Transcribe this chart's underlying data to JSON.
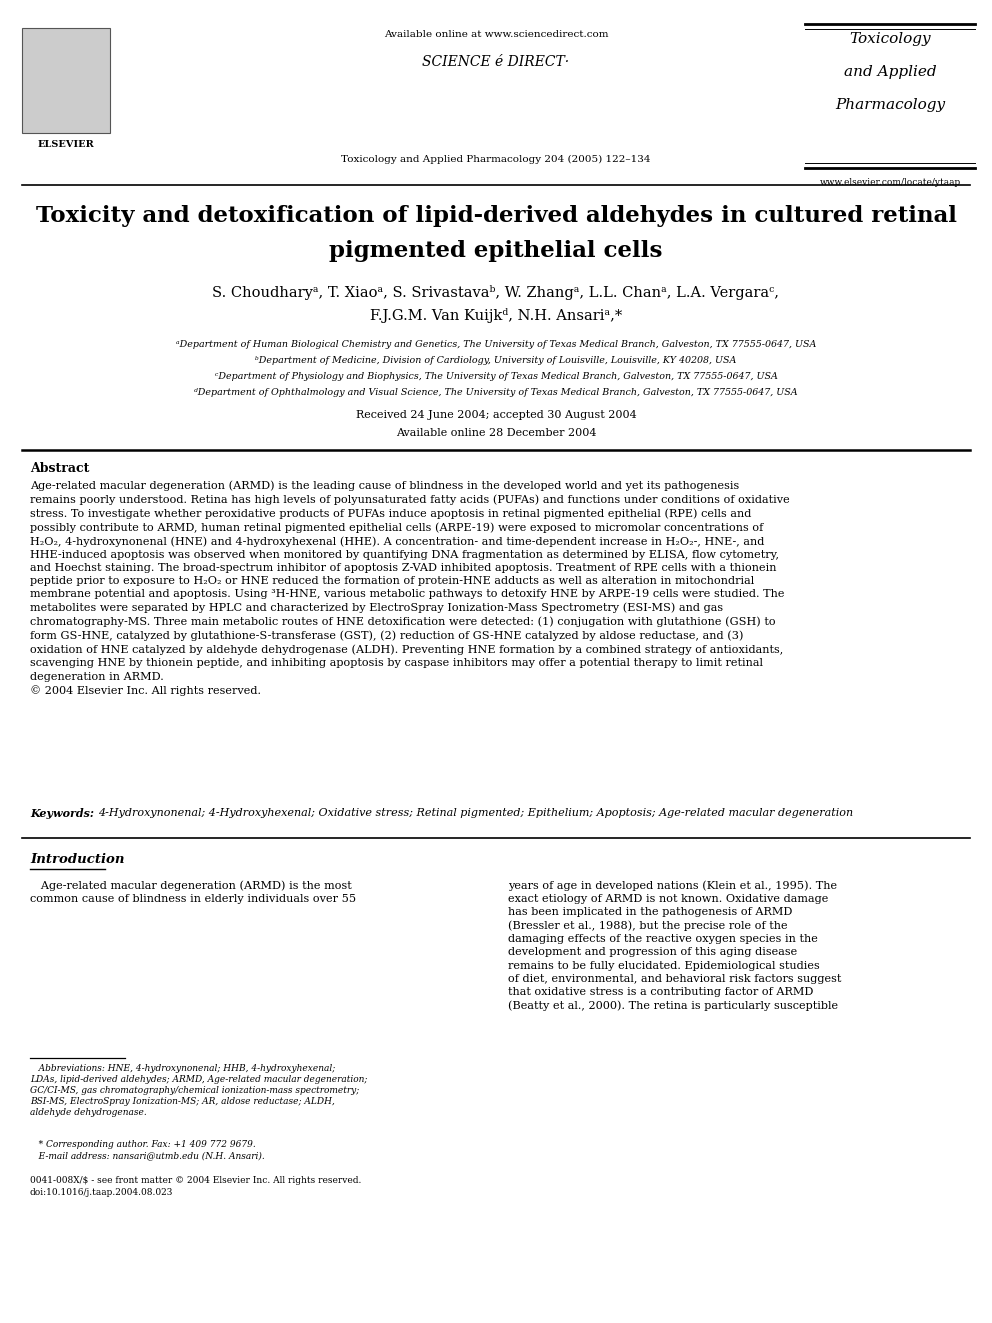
{
  "bg_color": "#ffffff",
  "available_online": "Available online at www.sciencedirect.com",
  "science_direct": "SCIENCE é DIRECT·",
  "journal_citation": "Toxicology and Applied Pharmacology 204 (2005) 122–134",
  "journal_name_line1": "Toxicology",
  "journal_name_line2": "and Applied",
  "journal_name_line3": "Pharmacology",
  "journal_url": "www.elsevier.com/locate/ytaap",
  "paper_title_line1": "Toxicity and detoxification of lipid-derived aldehydes in cultured retinal",
  "paper_title_line2": "pigmented epithelial cells",
  "authors_line1": "S. Choudharyᵃ, T. Xiaoᵃ, S. Srivastavaᵇ, W. Zhangᵃ, L.L. Chanᵃ, L.A. Vergaraᶜ,",
  "authors_line2": "F.J.G.M. Van Kuijkᵈ, N.H. Ansariᵃ,*",
  "aff_a": "ᵃDepartment of Human Biological Chemistry and Genetics, The University of Texas Medical Branch, Galveston, TX 77555-0647, USA",
  "aff_b": "ᵇDepartment of Medicine, Division of Cardiology, University of Louisville, Louisville, KY 40208, USA",
  "aff_c": "ᶜDepartment of Physiology and Biophysics, The University of Texas Medical Branch, Galveston, TX 77555-0647, USA",
  "aff_d": "ᵈDepartment of Ophthalmology and Visual Science, The University of Texas Medical Branch, Galveston, TX 77555-0647, USA",
  "received1": "Received 24 June 2004; accepted 30 August 2004",
  "received2": "Available online 28 December 2004",
  "abstract_label": "Abstract",
  "abstract_body": "Age-related macular degeneration (ARMD) is the leading cause of blindness in the developed world and yet its pathogenesis\nremains poorly understood. Retina has high levels of polyunsaturated fatty acids (PUFAs) and functions under conditions of oxidative\nstress. To investigate whether peroxidative products of PUFAs induce apoptosis in retinal pigmented epithelial (RPE) cells and\npossibly contribute to ARMD, human retinal pigmented epithelial cells (ARPE-19) were exposed to micromolar concentrations of\nH₂O₂, 4-hydroxynonenal (HNE) and 4-hydroxyhexenal (HHE). A concentration- and time-dependent increase in H₂O₂-, HNE-, and\nHHE-induced apoptosis was observed when monitored by quantifying DNA fragmentation as determined by ELISA, flow cytometry,\nand Hoechst staining. The broad-spectrum inhibitor of apoptosis Z-VAD inhibited apoptosis. Treatment of RPE cells with a thionein\npeptide prior to exposure to H₂O₂ or HNE reduced the formation of protein-HNE adducts as well as alteration in mitochondrial\nmembrane potential and apoptosis. Using ³H-HNE, various metabolic pathways to detoxify HNE by ARPE-19 cells were studied. The\nmetabolites were separated by HPLC and characterized by ElectroSpray Ionization-Mass Spectrometry (ESI-MS) and gas\nchromatography-MS. Three main metabolic routes of HNE detoxification were detected: (1) conjugation with glutathione (GSH) to\nform GS-HNE, catalyzed by glutathione-S-transferase (GST), (2) reduction of GS-HNE catalyzed by aldose reductase, and (3)\noxidation of HNE catalyzed by aldehyde dehydrogenase (ALDH). Preventing HNE formation by a combined strategy of antioxidants,\nscavenging HNE by thionein peptide, and inhibiting apoptosis by caspase inhibitors may offer a potential therapy to limit retinal\ndegeneration in ARMD.\n© 2004 Elsevier Inc. All rights reserved.",
  "keywords_label": "Keywords:",
  "keywords_body": "4-Hydroxynonenal; 4-Hydroxyhexenal; Oxidative stress; Retinal pigmented; Epithelium; Apoptosis; Age-related macular degeneration",
  "intro_label": "Introduction",
  "intro_col1_para": "   Age-related macular degeneration (ARMD) is the most\ncommon cause of blindness in elderly individuals over 55",
  "intro_col2_para": "years of age in developed nations (Klein et al., 1995). The\nexact etiology of ARMD is not known. Oxidative damage\nhas been implicated in the pathogenesis of ARMD\n(Bressler et al., 1988), but the precise role of the\ndamaging effects of the reactive oxygen species in the\ndevelopment and progression of this aging disease\nremains to be fully elucidated. Epidemiological studies\nof diet, environmental, and behavioral risk factors suggest\nthat oxidative stress is a contributing factor of ARMD\n(Beatty et al., 2000). The retina is particularly susceptible",
  "footnote_abbrev": "   Abbreviations: HNE, 4-hydroxynonenal; HHB, 4-hydroxyhexenal;\nLDAs, lipid-derived aldehydes; ARMD, Age-related macular degeneration;\nGC/CI-MS, gas chromatography/chemical ionization-mass spectrometry;\nBSI-MS, ElectroSpray Ionization-MS; AR, aldose reductase; ALDH,\naldehyde dehydrogenase.",
  "footnote_author": "   * Corresponding author. Fax: +1 409 772 9679.\n   E-mail address: nansari@utmb.edu (N.H. Ansari).",
  "footer_line": "0041-008X/$ - see front matter © 2004 Elsevier Inc. All rights reserved.\ndoi:10.1016/j.taap.2004.08.023"
}
